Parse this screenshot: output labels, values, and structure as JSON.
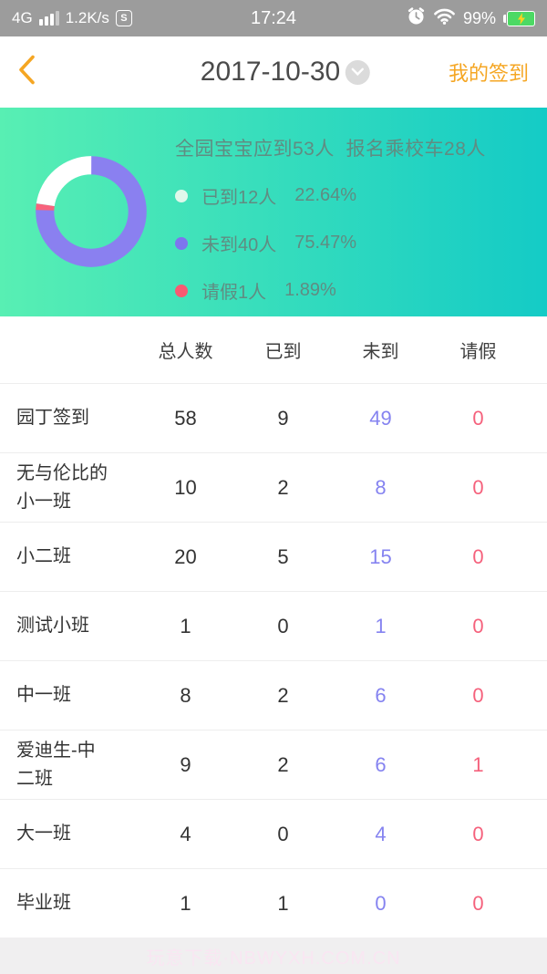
{
  "status_bar": {
    "network": "4G",
    "speed": "1.2K/s",
    "sim_badge": "S",
    "time": "17:24",
    "battery_percent": "99%"
  },
  "header": {
    "date": "2017-10-30",
    "my_signin_label": "我的签到"
  },
  "summary_title": "全园宝宝应到53人  报名乘校车28人",
  "chart_data": {
    "type": "pie",
    "donut": true,
    "title": "全园宝宝应到53人 报名乘校车28人",
    "slices": [
      {
        "name": "已到",
        "count": 12,
        "label": "已到12人",
        "percent": 22.64,
        "percent_label": "22.64%",
        "dot_color": "#DFF8EB",
        "arc_color": "#FFFFFF"
      },
      {
        "name": "未到",
        "count": 40,
        "label": "未到40人",
        "percent": 75.47,
        "percent_label": "75.47%",
        "dot_color": "#7D75EE",
        "arc_color": "#8A80F0"
      },
      {
        "name": "请假",
        "count": 1,
        "label": "请假1人",
        "percent": 1.89,
        "percent_label": "1.89%",
        "dot_color": "#F85A72",
        "arc_color": "#F7637D"
      }
    ],
    "draw_order": [
      1,
      2,
      0
    ],
    "start_at_top": true,
    "direction": "clockwise"
  },
  "table": {
    "columns": [
      "总人数",
      "已到",
      "未到",
      "请假"
    ],
    "rows": [
      {
        "label": "园丁签到",
        "total": 58,
        "arrived": 9,
        "absent": 49,
        "leave": 0
      },
      {
        "label": "无与伦比的\n小一班",
        "total": 10,
        "arrived": 2,
        "absent": 8,
        "leave": 0
      },
      {
        "label": "小二班",
        "total": 20,
        "arrived": 5,
        "absent": 15,
        "leave": 0
      },
      {
        "label": "测试小班",
        "total": 1,
        "arrived": 0,
        "absent": 1,
        "leave": 0
      },
      {
        "label": "中一班",
        "total": 8,
        "arrived": 2,
        "absent": 6,
        "leave": 0
      },
      {
        "label": "爱迪生-中\n二班",
        "total": 9,
        "arrived": 2,
        "absent": 6,
        "leave": 1
      },
      {
        "label": "大一班",
        "total": 4,
        "arrived": 0,
        "absent": 4,
        "leave": 0
      },
      {
        "label": "毕业班",
        "total": 1,
        "arrived": 1,
        "absent": 0,
        "leave": 0
      }
    ]
  },
  "footer": {
    "watermark": "玩意下载·NBWYXH.COM.CN"
  },
  "colors": {
    "accent_orange": "#F5A623",
    "purple_number": "#8583F0",
    "pink_number": "#F5617C",
    "panel_gradient": [
      "#58EFB3",
      "#14CBC6"
    ],
    "panel_text": "#608C82",
    "battery_green": "#4CD964",
    "status_bar_bg": "#9C9C9C"
  }
}
